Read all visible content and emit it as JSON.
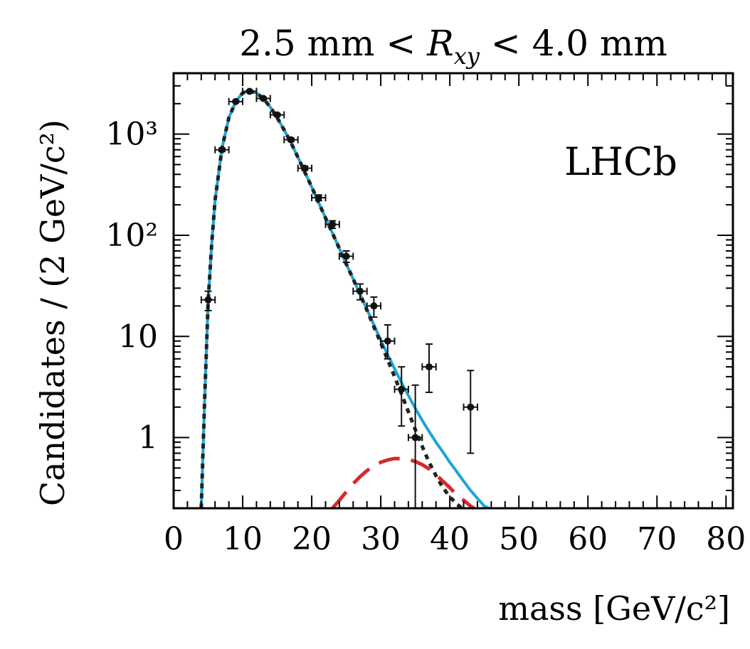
{
  "chart_data": {
    "type": "scatter",
    "title": "2.5 mm < R_xy < 4.0 mm",
    "title_parts": {
      "prefix": "2.5 mm < ",
      "var": "R",
      "sub": "xy",
      "suffix": " < 4.0 mm"
    },
    "experiment_label": "LHCb",
    "xlabel": "mass [GeV/c²]",
    "ylabel": "Candidates / (2 GeV/c²)",
    "xlim": [
      0,
      81
    ],
    "ylim": [
      0.2,
      4000
    ],
    "y_scale": "log",
    "x_ticks": [
      0,
      10,
      20,
      30,
      40,
      50,
      60,
      70,
      80
    ],
    "x_tick_labels": [
      "0",
      "10",
      "20",
      "30",
      "40",
      "50",
      "60",
      "70",
      "80"
    ],
    "y_ticks": [
      1,
      10,
      100,
      1000
    ],
    "y_tick_labels": [
      "1",
      "10",
      "10²",
      "10³"
    ],
    "data_points": [
      {
        "x": 5,
        "y": 23,
        "err_low": 5,
        "err_high": 5
      },
      {
        "x": 7,
        "y": 700,
        "err_low": 26,
        "err_high": 26
      },
      {
        "x": 9,
        "y": 2100,
        "err_low": 46,
        "err_high": 46
      },
      {
        "x": 11,
        "y": 2650,
        "err_low": 51,
        "err_high": 51
      },
      {
        "x": 13,
        "y": 2250,
        "err_low": 47,
        "err_high": 47
      },
      {
        "x": 15,
        "y": 1550,
        "err_low": 39,
        "err_high": 39
      },
      {
        "x": 17,
        "y": 880,
        "err_low": 30,
        "err_high": 30
      },
      {
        "x": 19,
        "y": 460,
        "err_low": 21,
        "err_high": 21
      },
      {
        "x": 21,
        "y": 235,
        "err_low": 15,
        "err_high": 15
      },
      {
        "x": 23,
        "y": 128,
        "err_low": 11,
        "err_high": 11
      },
      {
        "x": 25,
        "y": 62,
        "err_low": 8,
        "err_high": 8
      },
      {
        "x": 27,
        "y": 28,
        "err_low": 5,
        "err_high": 5
      },
      {
        "x": 29,
        "y": 20,
        "err_low": 4.5,
        "err_high": 4.5
      },
      {
        "x": 31,
        "y": 9,
        "err_low": 3,
        "err_high": 4
      },
      {
        "x": 33,
        "y": 3,
        "err_low": 1.7,
        "err_high": 2
      },
      {
        "x": 35,
        "y": 1,
        "err_low": 0.99,
        "err_high": 2.3
      },
      {
        "x": 37,
        "y": 5,
        "err_low": 2.2,
        "err_high": 3.4
      },
      {
        "x": 43,
        "y": 2,
        "err_low": 1.3,
        "err_high": 2.6
      }
    ],
    "series": [
      {
        "name": "Total fit",
        "color": "#1ba5d8",
        "style": "solid",
        "x": [
          4,
          4.5,
          5,
          5.5,
          6,
          7,
          8,
          9,
          10,
          11,
          12,
          13,
          14,
          15,
          16,
          17,
          18,
          19,
          20,
          21,
          22,
          23,
          24,
          25,
          26,
          27,
          28,
          29,
          30,
          31,
          32,
          33,
          34,
          35,
          36,
          37,
          38,
          39,
          40,
          41,
          42,
          43,
          44,
          45,
          45.7
        ],
        "y": [
          0.2,
          2.5,
          22,
          80,
          220,
          720,
          1450,
          2100,
          2550,
          2680,
          2550,
          2250,
          1850,
          1450,
          1100,
          820,
          590,
          420,
          300,
          210,
          148,
          105,
          74,
          52,
          37,
          26,
          18.5,
          13,
          9.2,
          6.6,
          4.8,
          3.5,
          2.6,
          1.95,
          1.48,
          1.15,
          0.9,
          0.72,
          0.57,
          0.46,
          0.37,
          0.3,
          0.25,
          0.21,
          0.2
        ]
      },
      {
        "name": "Background",
        "color": "#222222",
        "style": "dotted",
        "x": [
          4,
          4.5,
          5,
          5.5,
          6,
          7,
          8,
          9,
          10,
          11,
          12,
          13,
          14,
          15,
          16,
          17,
          18,
          19,
          20,
          21,
          22,
          23,
          24,
          25,
          26,
          27,
          28,
          29,
          30,
          31,
          32,
          33,
          34,
          35,
          36,
          37,
          38,
          39,
          40,
          41,
          41.8
        ],
        "y": [
          0.2,
          2.5,
          22,
          80,
          220,
          720,
          1450,
          2100,
          2550,
          2680,
          2550,
          2250,
          1850,
          1450,
          1100,
          820,
          590,
          420,
          300,
          210,
          148,
          105,
          74,
          52,
          37,
          26,
          18.2,
          12.5,
          8.6,
          5.9,
          4.0,
          2.7,
          1.8,
          1.2,
          0.82,
          0.57,
          0.42,
          0.32,
          0.26,
          0.22,
          0.2
        ]
      },
      {
        "name": "Signal",
        "color": "#d42a2f",
        "style": "dashed",
        "x": [
          23,
          24,
          25,
          26,
          27,
          28,
          29,
          30,
          31,
          32,
          33,
          34,
          35,
          36,
          37,
          38,
          39,
          40,
          41,
          42,
          43,
          43.5
        ],
        "y": [
          0.2,
          0.24,
          0.29,
          0.35,
          0.41,
          0.47,
          0.53,
          0.57,
          0.6,
          0.62,
          0.62,
          0.61,
          0.58,
          0.54,
          0.49,
          0.43,
          0.37,
          0.32,
          0.27,
          0.24,
          0.21,
          0.2
        ]
      }
    ]
  }
}
